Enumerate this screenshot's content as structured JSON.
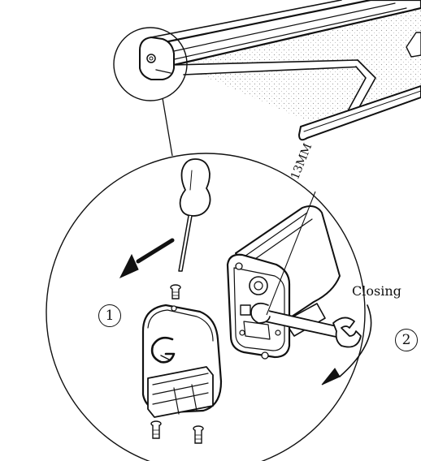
{
  "labels": {
    "wrench_size": "13MM",
    "closing": "Closing"
  },
  "steps": [
    {
      "number": "1"
    },
    {
      "number": "2"
    }
  ],
  "colors": {
    "line": "#111111",
    "background": "#ffffff",
    "fabric_dots": "#9a9a9a"
  }
}
